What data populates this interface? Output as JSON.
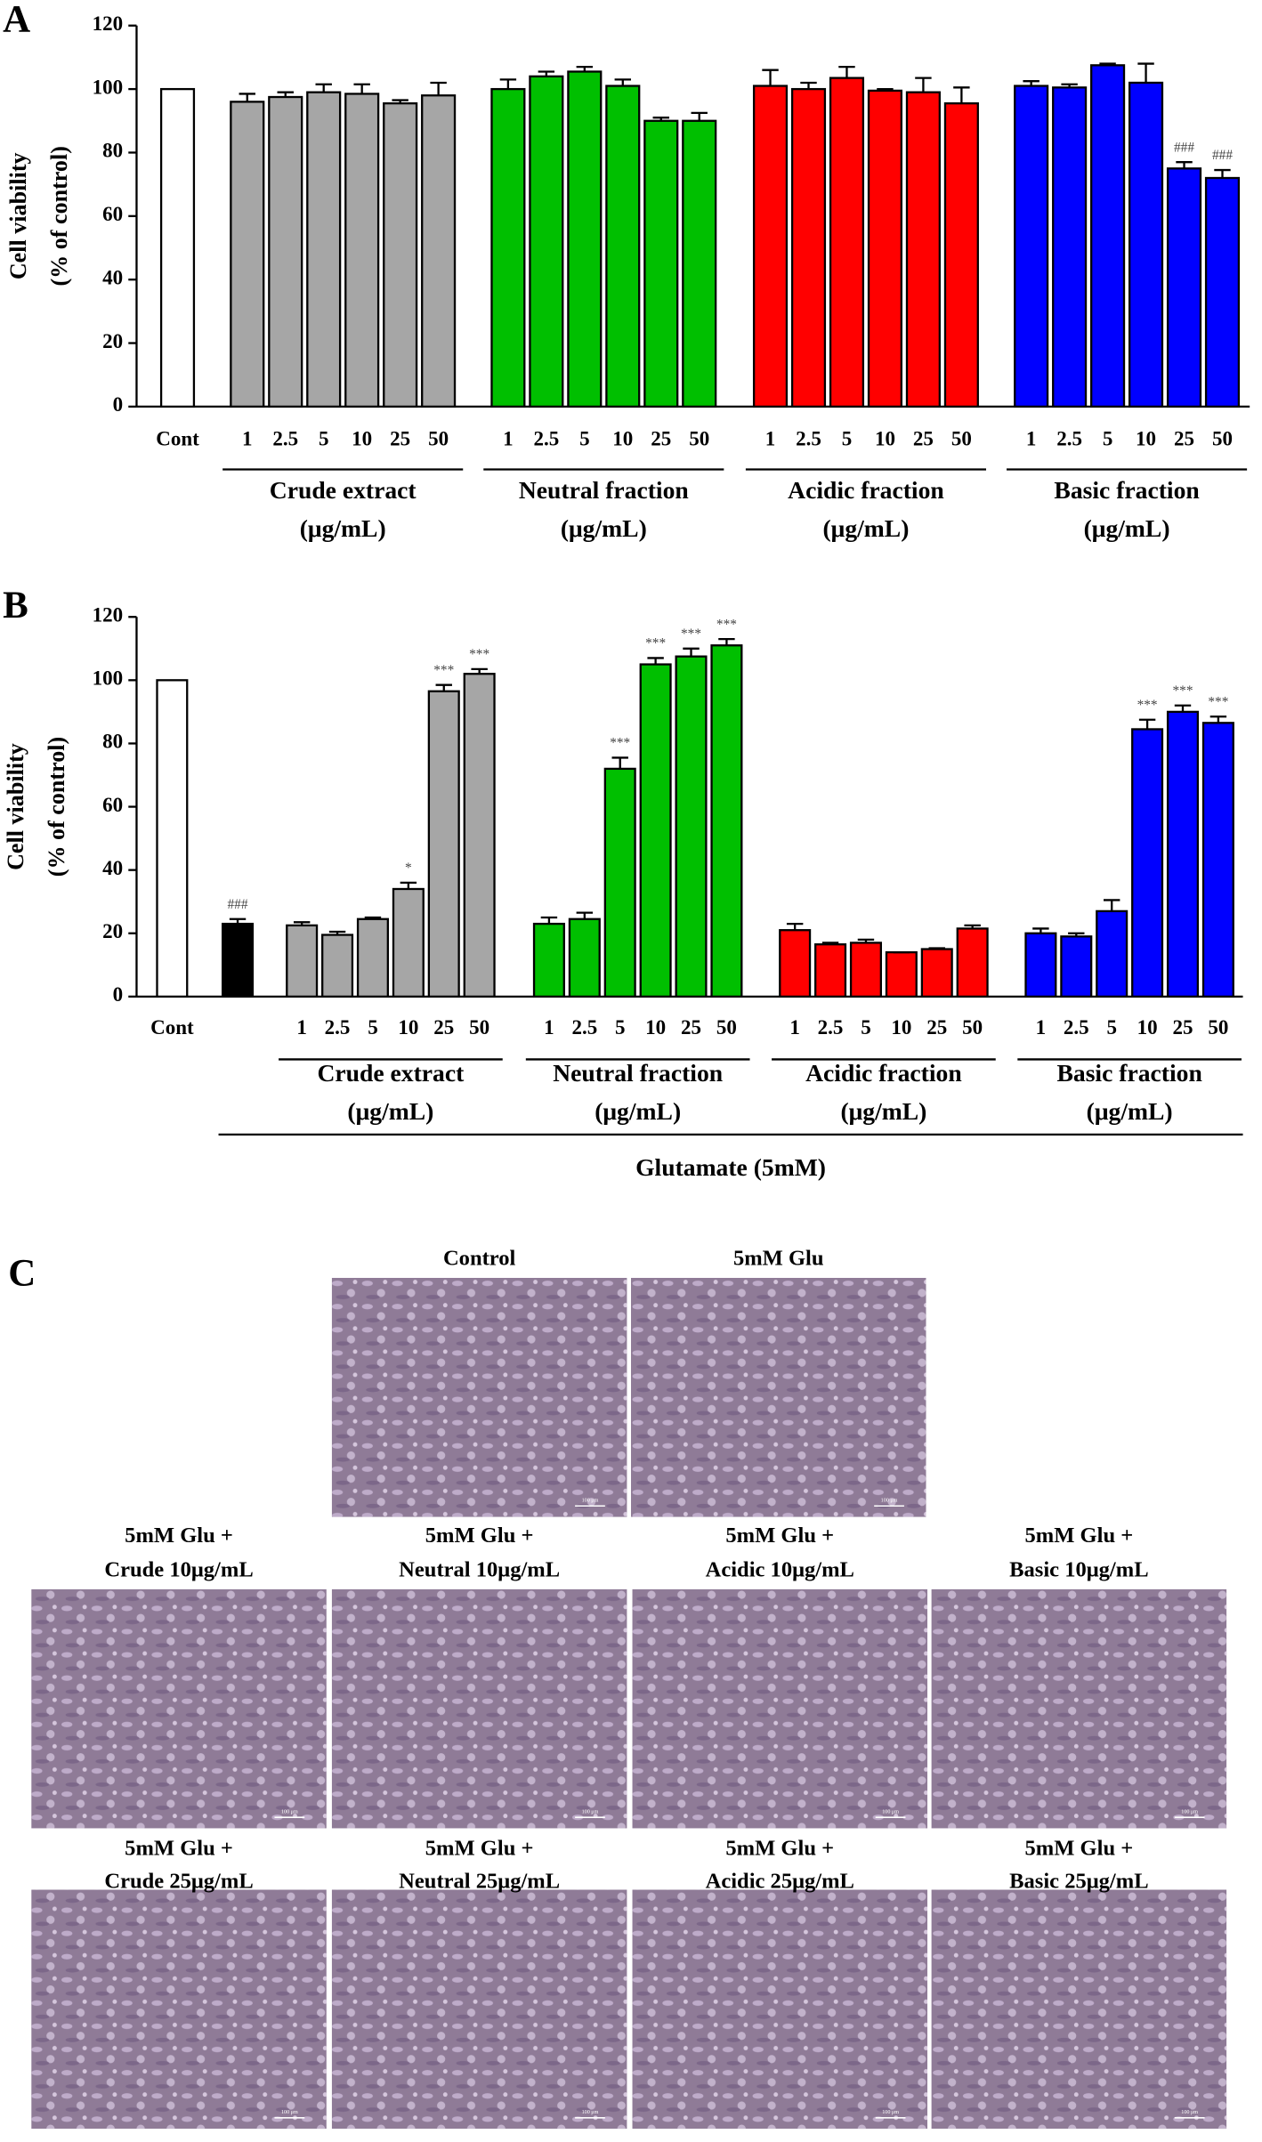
{
  "chart_data": [
    {
      "type": "bar",
      "panel": "A",
      "y_label": [
        "Cell viability",
        "(% of control)"
      ],
      "ylim": [
        0,
        120
      ],
      "yticks": [
        0,
        20,
        40,
        60,
        80,
        100,
        120
      ],
      "single_bars": {
        "categories": [
          "Cont"
        ],
        "values": [
          100
        ],
        "errors": [
          null
        ],
        "colors": [
          "#ffffff"
        ],
        "annotations": [
          null
        ]
      },
      "groups": [
        {
          "name": "Crude extract",
          "unit": "(μg/mL)",
          "color": "#a6a6a6",
          "categories": [
            "1",
            "2.5",
            "5",
            "10",
            "25",
            "50"
          ],
          "values": [
            96,
            97.5,
            99,
            98.5,
            95.5,
            98
          ],
          "errors": [
            2.5,
            1.5,
            2.5,
            3,
            1,
            4
          ],
          "annotations": [
            null,
            null,
            null,
            null,
            null,
            null
          ]
        },
        {
          "name": "Neutral fraction",
          "unit": "(μg/mL)",
          "color": "#00bf00",
          "categories": [
            "1",
            "2.5",
            "5",
            "10",
            "25",
            "50"
          ],
          "values": [
            100,
            104,
            105.5,
            101,
            90,
            90
          ],
          "errors": [
            3,
            1.5,
            1.5,
            2,
            1,
            2.5
          ],
          "annotations": [
            null,
            null,
            null,
            null,
            null,
            null
          ]
        },
        {
          "name": "Acidic fraction",
          "unit": "(μg/mL)",
          "color": "#ff0000",
          "categories": [
            "1",
            "2.5",
            "5",
            "10",
            "25",
            "50"
          ],
          "values": [
            101,
            100,
            103.5,
            99.5,
            99,
            95.5
          ],
          "errors": [
            5,
            2,
            3.5,
            0.5,
            4.5,
            5
          ],
          "annotations": [
            null,
            null,
            null,
            null,
            null,
            null
          ]
        },
        {
          "name": "Basic fraction",
          "unit": "(μg/mL)",
          "color": "#0000ff",
          "categories": [
            "1",
            "2.5",
            "5",
            "10",
            "25",
            "50"
          ],
          "values": [
            101,
            100.5,
            107.5,
            102,
            75,
            72
          ],
          "errors": [
            1.5,
            1,
            0.5,
            6,
            2,
            2.5
          ],
          "annotations": [
            null,
            null,
            null,
            null,
            "###",
            "###"
          ]
        }
      ]
    },
    {
      "type": "bar",
      "panel": "B",
      "y_label": [
        "Cell viability",
        "(% of control)"
      ],
      "ylim": [
        0,
        120
      ],
      "yticks": [
        0,
        20,
        40,
        60,
        80,
        100,
        120
      ],
      "single_bars": {
        "categories": [
          "Cont",
          null
        ],
        "values": [
          100,
          23
        ],
        "errors": [
          null,
          1.5
        ],
        "colors": [
          "#ffffff",
          "#000000"
        ],
        "annotations": [
          null,
          "###"
        ]
      },
      "groups": [
        {
          "name": "Crude extract",
          "unit": "(μg/mL)",
          "color": "#a6a6a6",
          "categories": [
            "1",
            "2.5",
            "5",
            "10",
            "25",
            "50"
          ],
          "values": [
            22.5,
            19.5,
            24.5,
            34,
            96.5,
            102
          ],
          "errors": [
            1,
            1,
            0.5,
            2,
            2,
            1.5
          ],
          "annotations": [
            null,
            null,
            null,
            "*",
            "***",
            "***"
          ]
        },
        {
          "name": "Neutral fraction",
          "unit": "(μg/mL)",
          "color": "#00bf00",
          "categories": [
            "1",
            "2.5",
            "5",
            "10",
            "25",
            "50"
          ],
          "values": [
            23,
            24.5,
            72,
            105,
            107.5,
            111
          ],
          "errors": [
            2,
            2,
            3.5,
            2,
            2.5,
            2
          ],
          "annotations": [
            null,
            null,
            "***",
            "***",
            "***",
            "***"
          ]
        },
        {
          "name": "Acidic fraction",
          "unit": "(μg/mL)",
          "color": "#ff0000",
          "categories": [
            "1",
            "2.5",
            "5",
            "10",
            "25",
            "50"
          ],
          "values": [
            21,
            16.5,
            17,
            14,
            15,
            21.5
          ],
          "errors": [
            2,
            0.5,
            1,
            0,
            0.3,
            1
          ],
          "annotations": [
            null,
            null,
            null,
            null,
            null,
            null
          ]
        },
        {
          "name": "Basic fraction",
          "unit": "(μg/mL)",
          "color": "#0000ff",
          "categories": [
            "1",
            "2.5",
            "5",
            "10",
            "25",
            "50"
          ],
          "values": [
            20,
            19,
            27,
            84.5,
            90,
            86.5
          ],
          "errors": [
            1.5,
            1,
            3.5,
            3,
            2,
            2
          ],
          "annotations": [
            null,
            null,
            null,
            "***",
            "***",
            "***"
          ]
        }
      ],
      "span_label": "Glutamate (5mM)"
    }
  ],
  "micrographs": {
    "panel": "C",
    "scale_bar": "100 μm",
    "rows": [
      [
        {
          "caption": [
            "Control"
          ]
        },
        {
          "caption": [
            "5mM Glu"
          ]
        }
      ],
      [
        {
          "caption": [
            "5mM Glu +",
            "Crude 10μg/mL"
          ]
        },
        {
          "caption": [
            "5mM Glu +",
            "Neutral 10μg/mL"
          ]
        },
        {
          "caption": [
            "5mM Glu +",
            "Acidic 10μg/mL"
          ]
        },
        {
          "caption": [
            "5mM Glu +",
            "Basic 10μg/mL"
          ]
        }
      ],
      [
        {
          "caption": [
            "5mM Glu +",
            "Crude 25μg/mL"
          ]
        },
        {
          "caption": [
            "5mM Glu +",
            "Neutral 25μg/mL"
          ]
        },
        {
          "caption": [
            "5mM Glu +",
            "Acidic 25μg/mL"
          ]
        },
        {
          "caption": [
            "5mM Glu +",
            "Basic 25μg/mL"
          ]
        }
      ]
    ]
  }
}
